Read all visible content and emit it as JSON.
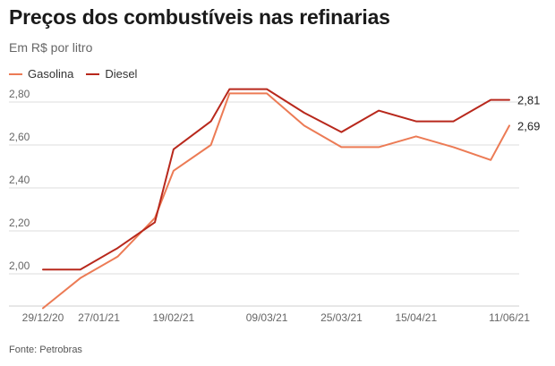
{
  "chart_data": {
    "type": "line",
    "title": "Preços dos combustíveis nas refinarias",
    "subtitle": "Em R$ por litro",
    "source": "Fonte: Petrobras",
    "legend_placement": "top-left",
    "grid": true,
    "ylim": [
      1.85,
      2.9
    ],
    "y_ticks": [
      2.0,
      2.2,
      2.4,
      2.6,
      2.8
    ],
    "y_tick_labels": [
      "2,00",
      "2,20",
      "2,40",
      "2,60",
      "2,80"
    ],
    "x_tick_labels": [
      "29/12/20",
      "27/01/21",
      "19/02/21",
      "09/03/21",
      "25/03/21",
      "15/04/21",
      "11/06/21"
    ],
    "x_tick_indices": [
      0,
      3,
      7,
      12,
      16,
      20,
      25
    ],
    "x_count": 26,
    "series": [
      {
        "name": "Gasolina",
        "color": "#ec7b55",
        "x": [
          0,
          2,
          4,
          6,
          7,
          9,
          10,
          12,
          14,
          16,
          18,
          20,
          22,
          24,
          25
        ],
        "values": [
          1.84,
          1.98,
          2.08,
          2.26,
          2.48,
          2.6,
          2.84,
          2.84,
          2.69,
          2.59,
          2.59,
          2.64,
          2.59,
          2.53,
          2.69
        ],
        "end_label": "2,69"
      },
      {
        "name": "Diesel",
        "color": "#b8281c",
        "x": [
          0,
          2,
          4,
          6,
          7,
          9,
          10,
          12,
          14,
          16,
          18,
          20,
          22,
          24,
          25
        ],
        "values": [
          2.02,
          2.02,
          2.12,
          2.24,
          2.58,
          2.71,
          2.86,
          2.86,
          2.75,
          2.66,
          2.76,
          2.71,
          2.71,
          2.81,
          2.81
        ],
        "end_label": "2,81"
      }
    ]
  }
}
